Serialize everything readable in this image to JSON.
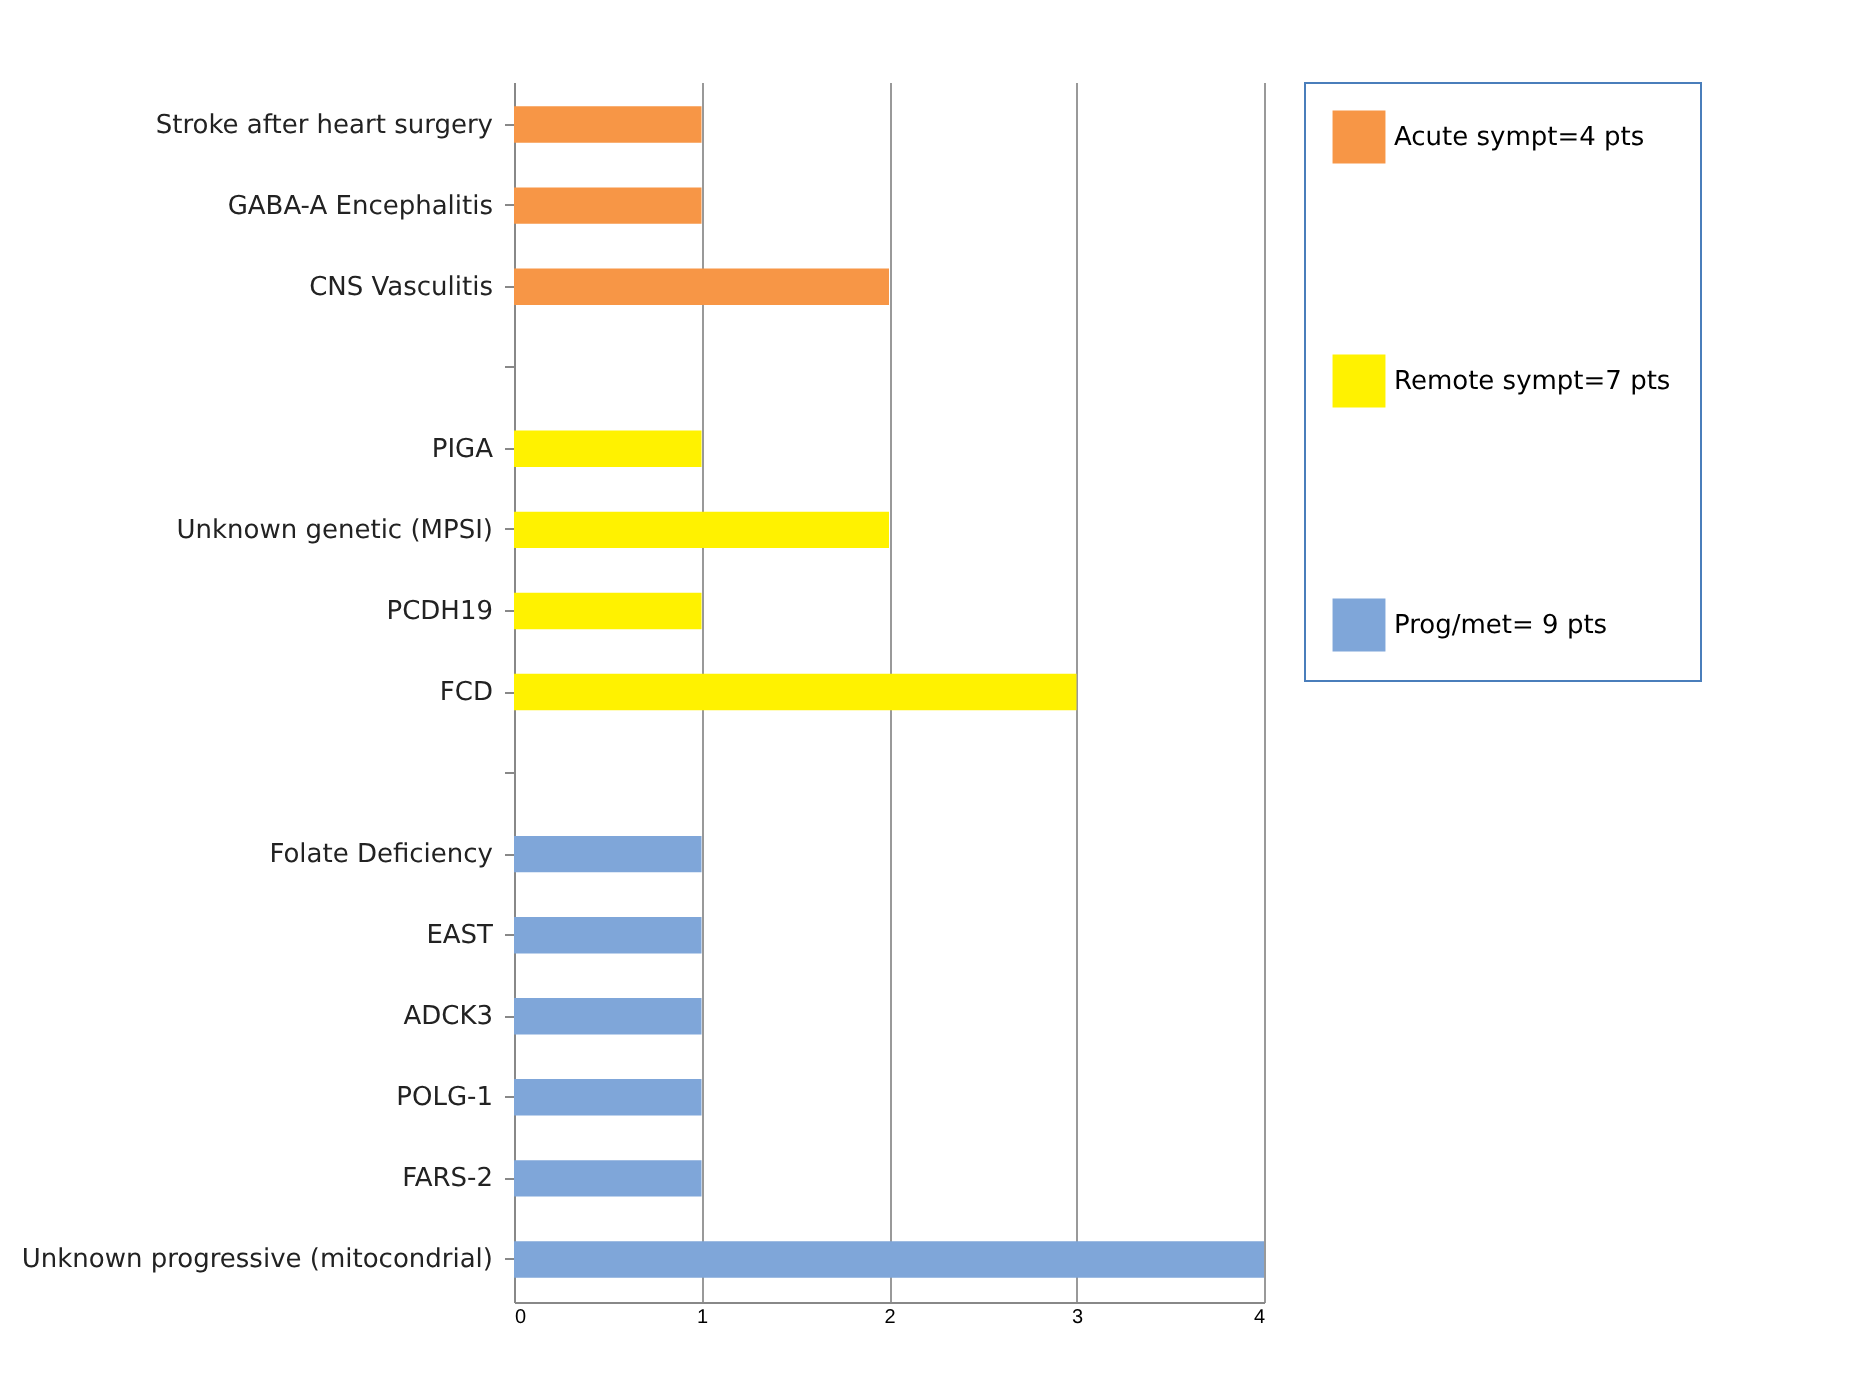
{
  "chart_data": {
    "type": "bar",
    "orientation": "horizontal",
    "categories": [
      "Stroke after heart surgery",
      "GABA-A Encephalitis",
      "CNS Vasculitis",
      null,
      "PIGA",
      "Unknown genetic (MPSI)",
      "PCDH19",
      "FCD",
      null,
      "Folate Deficiency",
      "EAST",
      "ADCK3",
      "POLG-1",
      "FARS-2",
      "Unknown progressive (mitocondrial)"
    ],
    "series": [
      {
        "name": "Acute sympt=4 pts",
        "color": "#f79646",
        "values": [
          1,
          1,
          2,
          null,
          null,
          null,
          null,
          null,
          null,
          null,
          null,
          null,
          null,
          null,
          null
        ]
      },
      {
        "name": "Remote sympt=7 pts",
        "color": "#fff200",
        "values": [
          null,
          null,
          null,
          null,
          1,
          2,
          1,
          3,
          null,
          null,
          null,
          null,
          null,
          null,
          null
        ]
      },
      {
        "name": "Prog/met= 9 pts",
        "color": "#7fa6d9",
        "values": [
          null,
          null,
          null,
          null,
          null,
          null,
          null,
          null,
          null,
          1,
          1,
          1,
          1,
          1,
          4
        ]
      }
    ],
    "xlim": [
      0,
      4
    ],
    "xticks": [
      0,
      1,
      2,
      3,
      4
    ],
    "grid": "x",
    "legend": "right"
  }
}
